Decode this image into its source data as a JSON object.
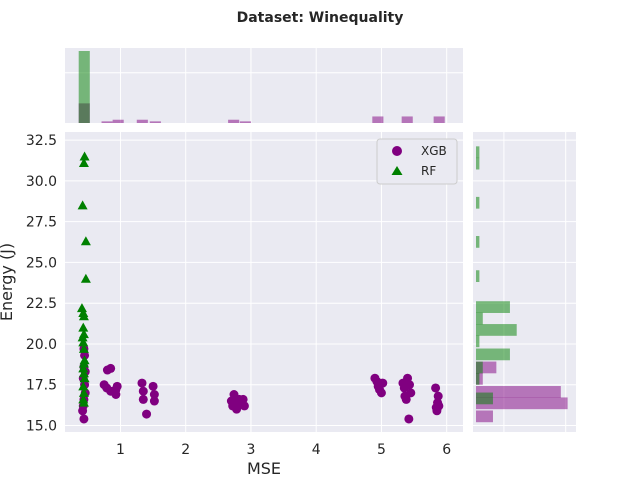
{
  "chart_data": {
    "type": "scatter",
    "title": "Dataset: Winequality",
    "xlabel": "MSE",
    "ylabel": "Energy (J)",
    "xlim": [
      0.15,
      6.25
    ],
    "ylim": [
      14.6,
      33.0
    ],
    "xticks": [
      1,
      2,
      3,
      4,
      5,
      6
    ],
    "yticks": [
      15.0,
      17.5,
      20.0,
      22.5,
      25.0,
      27.5,
      30.0,
      32.5
    ],
    "grid": true,
    "legend_position": "top-right",
    "series": [
      {
        "name": "XGB",
        "marker": "circle",
        "color": "#800080",
        "points": [
          [
            0.44,
            15.4
          ],
          [
            0.42,
            15.9
          ],
          [
            0.43,
            16.2
          ],
          [
            0.44,
            16.6
          ],
          [
            0.46,
            17.0
          ],
          [
            0.45,
            17.5
          ],
          [
            0.43,
            17.9
          ],
          [
            0.46,
            18.3
          ],
          [
            0.44,
            18.6
          ],
          [
            0.45,
            19.3
          ],
          [
            0.44,
            19.7
          ],
          [
            0.75,
            17.5
          ],
          [
            0.79,
            17.3
          ],
          [
            0.8,
            18.4
          ],
          [
            0.85,
            18.5
          ],
          [
            0.85,
            17.1
          ],
          [
            0.93,
            17.2
          ],
          [
            0.93,
            16.9
          ],
          [
            0.95,
            17.4
          ],
          [
            1.33,
            17.6
          ],
          [
            1.35,
            17.1
          ],
          [
            1.4,
            15.7
          ],
          [
            1.5,
            17.4
          ],
          [
            1.52,
            16.9
          ],
          [
            1.52,
            16.5
          ],
          [
            1.35,
            16.6
          ],
          [
            2.7,
            16.5
          ],
          [
            2.72,
            16.2
          ],
          [
            2.74,
            16.9
          ],
          [
            2.76,
            16.4
          ],
          [
            2.78,
            16.0
          ],
          [
            2.82,
            16.6
          ],
          [
            2.85,
            16.3
          ],
          [
            2.88,
            16.6
          ],
          [
            2.9,
            16.2
          ],
          [
            4.9,
            17.9
          ],
          [
            4.93,
            17.7
          ],
          [
            4.95,
            17.4
          ],
          [
            4.97,
            17.2
          ],
          [
            5.0,
            17.0
          ],
          [
            5.02,
            17.6
          ],
          [
            5.33,
            17.6
          ],
          [
            5.35,
            17.3
          ],
          [
            5.36,
            16.8
          ],
          [
            5.38,
            16.6
          ],
          [
            5.4,
            17.9
          ],
          [
            5.42,
            15.4
          ],
          [
            5.43,
            17.5
          ],
          [
            5.45,
            17.0
          ],
          [
            5.83,
            17.3
          ],
          [
            5.84,
            16.1
          ],
          [
            5.85,
            15.9
          ],
          [
            5.86,
            16.4
          ],
          [
            5.87,
            16.8
          ],
          [
            5.88,
            16.2
          ]
        ]
      },
      {
        "name": "RF",
        "marker": "triangle",
        "color": "#008000",
        "points": [
          [
            0.45,
            31.5
          ],
          [
            0.44,
            31.1
          ],
          [
            0.42,
            28.5
          ],
          [
            0.47,
            26.3
          ],
          [
            0.47,
            24.0
          ],
          [
            0.41,
            22.2
          ],
          [
            0.43,
            21.9
          ],
          [
            0.44,
            21.7
          ],
          [
            0.43,
            21.0
          ],
          [
            0.44,
            20.6
          ],
          [
            0.42,
            20.4
          ],
          [
            0.43,
            20.1
          ],
          [
            0.44,
            19.7
          ],
          [
            0.45,
            19.0
          ],
          [
            0.44,
            18.8
          ],
          [
            0.43,
            18.5
          ],
          [
            0.44,
            18.2
          ],
          [
            0.45,
            17.9
          ],
          [
            0.43,
            17.4
          ],
          [
            0.44,
            17.0
          ],
          [
            0.43,
            16.6
          ],
          [
            0.44,
            16.4
          ]
        ]
      }
    ],
    "marginal_x": {
      "orientation": "vertical",
      "bin_width": 0.17,
      "max_count": 22,
      "XGB_bins": [
        [
          0.36,
          6
        ],
        [
          0.71,
          0.5
        ],
        [
          0.88,
          1
        ],
        [
          1.25,
          1
        ],
        [
          1.45,
          0.5
        ],
        [
          2.65,
          1
        ],
        [
          2.83,
          0.5
        ],
        [
          4.86,
          2
        ],
        [
          5.31,
          2
        ],
        [
          5.8,
          2
        ]
      ],
      "RF_bins": [
        [
          0.36,
          22
        ]
      ]
    },
    "marginal_y": {
      "orientation": "horizontal",
      "bin_width": 0.72,
      "max_count": 28,
      "XGB_bins": [
        [
          15.2,
          5
        ],
        [
          16.0,
          27
        ],
        [
          16.7,
          25
        ],
        [
          17.5,
          2
        ],
        [
          18.2,
          6
        ]
      ],
      "RF_bins": [
        [
          16.3,
          5
        ],
        [
          17.5,
          1
        ],
        [
          18.2,
          2
        ],
        [
          19.0,
          10
        ],
        [
          19.8,
          1
        ],
        [
          20.5,
          12
        ],
        [
          21.2,
          2
        ],
        [
          21.9,
          10
        ],
        [
          23.8,
          1
        ],
        [
          25.9,
          1
        ],
        [
          28.3,
          1
        ],
        [
          30.7,
          1
        ],
        [
          31.4,
          1
        ]
      ]
    }
  }
}
